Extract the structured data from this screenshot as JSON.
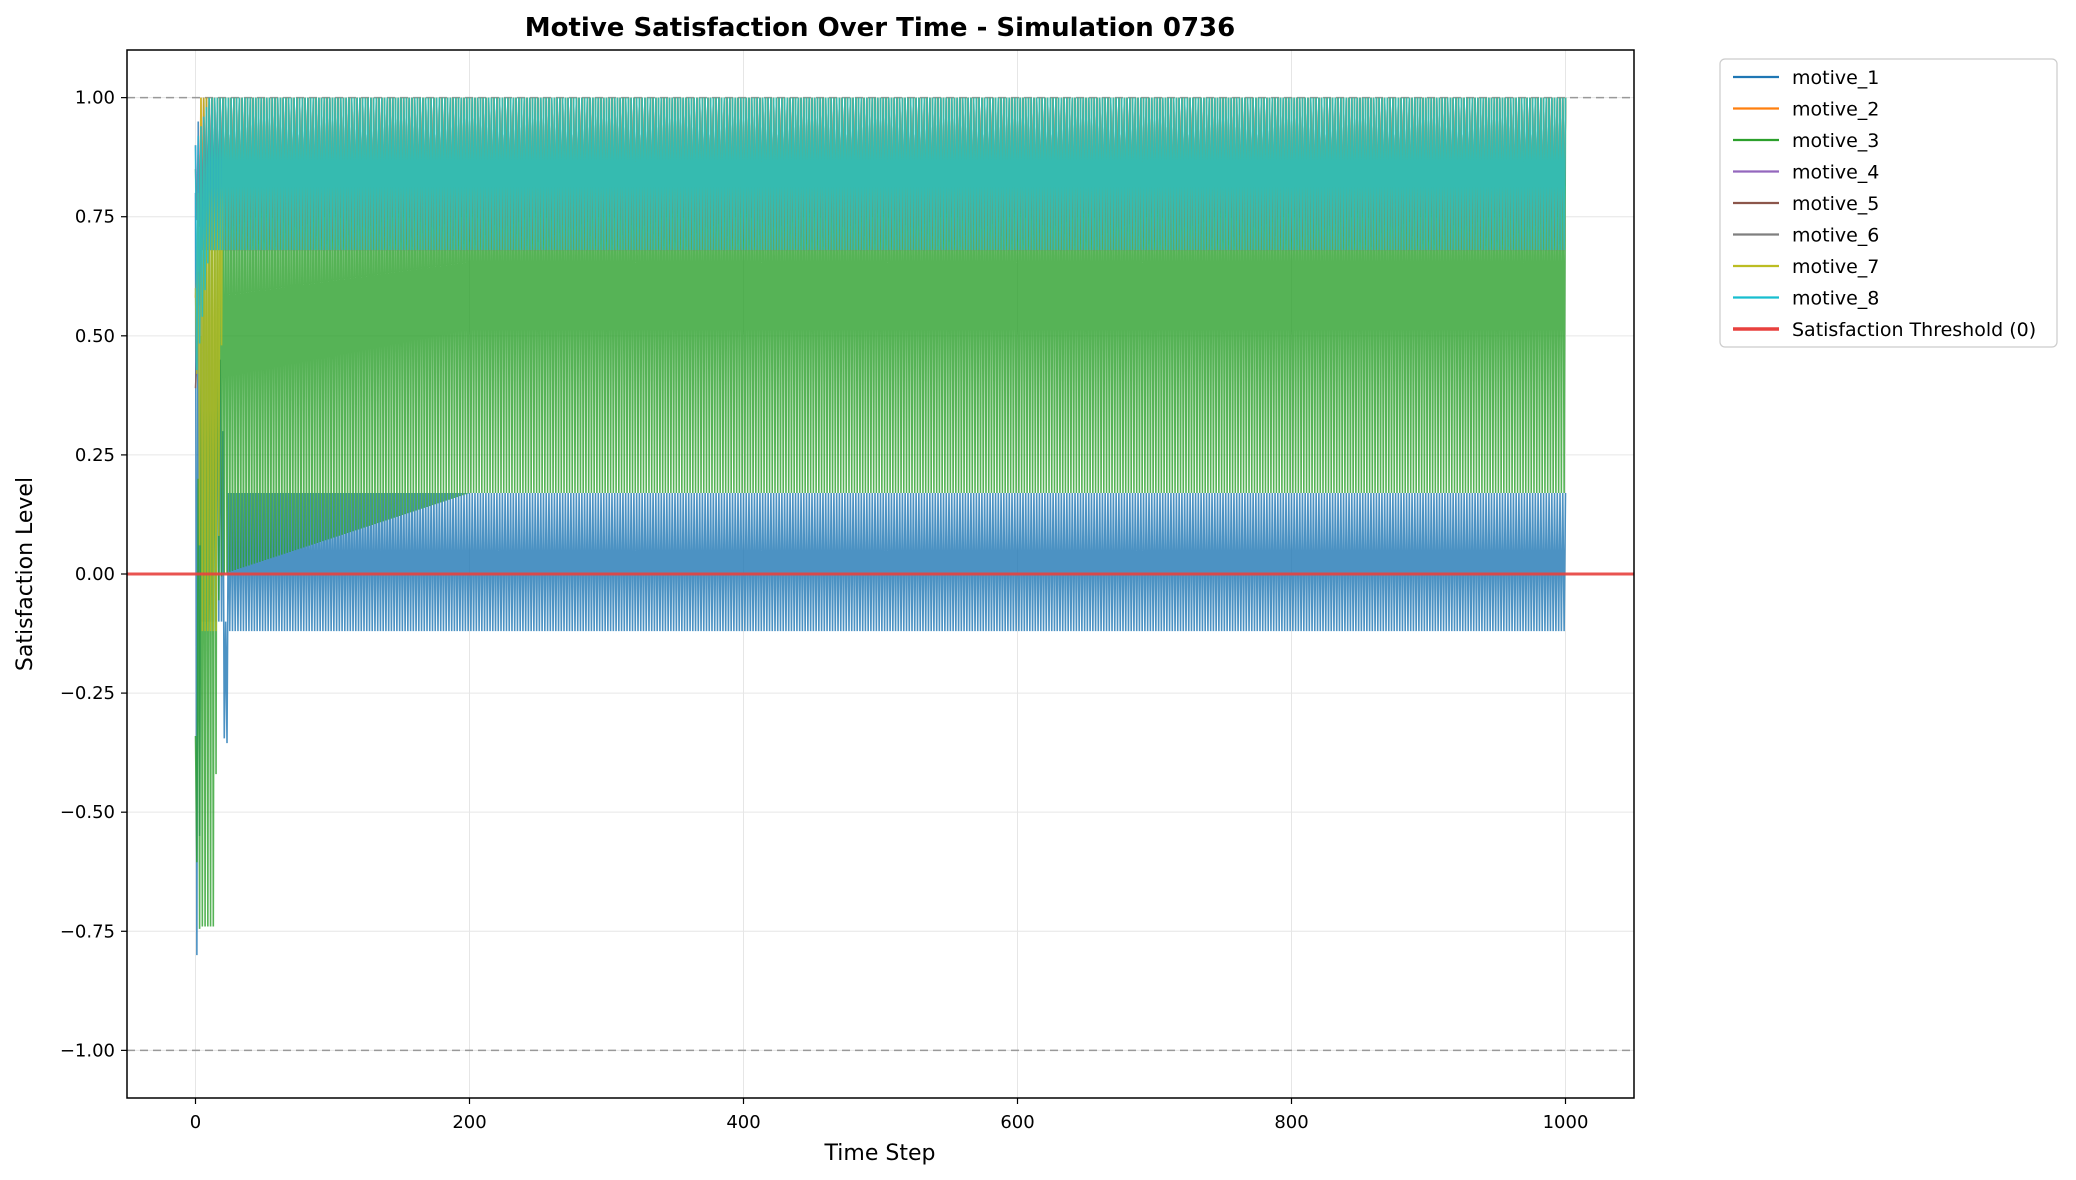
{
  "chart_data": {
    "type": "line",
    "title": "Motive Satisfaction Over Time - Simulation 0736",
    "xlabel": "Time Step",
    "ylabel": "Satisfaction Level",
    "xlim": [
      -50,
      1050
    ],
    "ylim": [
      -1.1,
      1.1
    ],
    "xticks": [
      0,
      200,
      400,
      600,
      800,
      1000
    ],
    "xtick_labels": [
      "0",
      "200",
      "400",
      "600",
      "800",
      "1000"
    ],
    "yticks": [
      -1.0,
      -0.75,
      -0.5,
      -0.25,
      0.0,
      0.25,
      0.5,
      0.75,
      1.0
    ],
    "ytick_labels": [
      "−1.00",
      "−0.75",
      "−0.50",
      "−0.25",
      "0.00",
      "0.25",
      "0.50",
      "0.75",
      "1.00"
    ],
    "grid": true,
    "legend_position": "outside right",
    "reference_lines": [
      {
        "y": 1.0,
        "style": "dashed",
        "color": "#999999"
      },
      {
        "y": -1.0,
        "style": "dashed",
        "color": "#999999"
      }
    ],
    "threshold": {
      "name": "Satisfaction Threshold (0)",
      "y": 0.0,
      "color": "#e8413e"
    },
    "series": [
      {
        "name": "motive_1",
        "color": "#1f77b4",
        "x": [
          0,
          2,
          4,
          6,
          8,
          10,
          12,
          14,
          16,
          18,
          20,
          22,
          24,
          200,
          1000
        ],
        "y_high": [
          0.8,
          0.95,
          0.9,
          0.9,
          0.9,
          0.8,
          0.75,
          0.7,
          0.68,
          0.45,
          0.3,
          -0.1,
          0.17,
          0.17,
          0.17
        ],
        "y_low": [
          -0.6,
          -1.0,
          -0.1,
          -0.1,
          -0.1,
          -0.1,
          -0.1,
          -0.1,
          -0.1,
          -0.1,
          -0.1,
          -0.59,
          -0.12,
          -0.12,
          -0.12
        ]
      },
      {
        "name": "motive_2",
        "color": "#ff7f0e",
        "x": [
          0,
          4,
          8,
          12,
          16,
          20,
          1000
        ],
        "y_high": [
          0.58,
          1.0,
          1.0,
          1.0,
          1.0,
          1.0,
          1.0
        ],
        "y_low": [
          0.58,
          0.8,
          0.68,
          0.68,
          0.68,
          0.68,
          0.68
        ]
      },
      {
        "name": "motive_3",
        "color": "#2ca02c",
        "x": [
          0,
          2,
          4,
          6,
          8,
          10,
          12,
          14,
          16,
          18,
          20,
          200,
          1000
        ],
        "y_high": [
          -0.34,
          0.2,
          0.5,
          0.7,
          0.8,
          0.9,
          0.95,
          1.0,
          1.0,
          1.0,
          1.0,
          1.0,
          1.0
        ],
        "y_low": [
          -0.46,
          -0.75,
          -0.74,
          -0.74,
          -0.74,
          -0.74,
          -0.74,
          -0.74,
          -0.1,
          -0.01,
          0.0,
          0.17,
          0.17
        ]
      },
      {
        "name": "motive_4",
        "color": "#9467bd",
        "x": [
          0,
          10,
          20,
          1000
        ],
        "y_high": [
          0.9,
          1.0,
          1.0,
          1.0
        ],
        "y_low": [
          0.75,
          0.68,
          0.68,
          0.68
        ]
      },
      {
        "name": "motive_5",
        "color": "#8c564b",
        "x": [
          0,
          5,
          10,
          20,
          1000
        ],
        "y_high": [
          0.39,
          1.0,
          1.0,
          1.0,
          1.0
        ],
        "y_low": [
          0.39,
          0.68,
          0.68,
          0.68,
          0.68
        ]
      },
      {
        "name": "motive_6",
        "color": "#7f7f7f",
        "x": [
          0,
          10,
          20,
          1000
        ],
        "y_high": [
          0.85,
          1.0,
          1.0,
          1.0
        ],
        "y_low": [
          0.75,
          0.68,
          0.68,
          0.68
        ]
      },
      {
        "name": "motive_7",
        "color": "#bcbd22",
        "x": [
          0,
          4,
          8,
          12,
          16,
          20,
          1000
        ],
        "y_high": [
          0.6,
          1.0,
          1.0,
          1.0,
          1.0,
          1.0,
          1.0
        ],
        "y_low": [
          0.6,
          -0.12,
          -0.12,
          -0.12,
          -0.12,
          0.68,
          0.68
        ]
      },
      {
        "name": "motive_8",
        "color": "#17becf",
        "x": [
          0,
          10,
          20,
          1000
        ],
        "y_high": [
          0.9,
          1.0,
          1.0,
          1.0
        ],
        "y_low": [
          0.4,
          0.68,
          0.68,
          0.68
        ]
      }
    ]
  }
}
